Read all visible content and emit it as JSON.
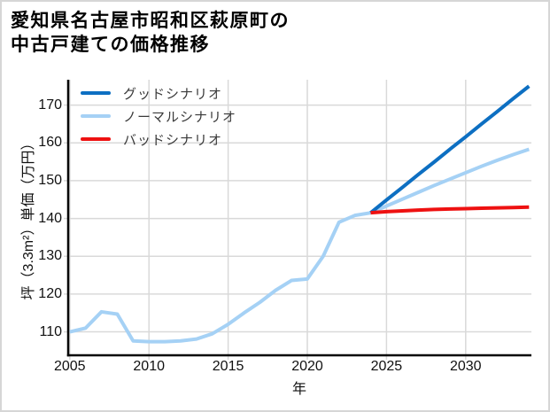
{
  "page": {
    "background": "#ffffff",
    "border_color": "#d6d6d6"
  },
  "header": {
    "title_line1": "愛知県名古屋市昭和区萩原町の",
    "title_line2": "中古戸建ての価格推移"
  },
  "chart_data": {
    "type": "line",
    "title": "愛知県名古屋市昭和区萩原町の中古戸建ての価格推移",
    "xlabel": "年",
    "ylabel": "坪（3.3m²）単価（万円）",
    "xlim": [
      2004.9,
      2034.15
    ],
    "ylim": [
      103.8,
      176.7
    ],
    "xticks": [
      2005,
      2010,
      2015,
      2020,
      2025,
      2030
    ],
    "yticks": [
      110,
      120,
      130,
      140,
      150,
      160,
      170
    ],
    "grid": true,
    "legend_position": "upper-left",
    "colors": {
      "grid": "#d9d9d9",
      "axis": "#000000",
      "tick_text": "#111111",
      "legend_text": "#3a3a3a"
    },
    "series": [
      {
        "name": "グッドシナリオ",
        "color": "#0d6fc2",
        "zorder": 2,
        "x": [
          2024,
          2025,
          2026,
          2027,
          2028,
          2029,
          2030,
          2031,
          2032,
          2033,
          2034
        ],
        "values": [
          141.5,
          144.9,
          148.2,
          151.6,
          154.9,
          158.3,
          161.6,
          165.0,
          168.3,
          171.7,
          175.0
        ]
      },
      {
        "name": "ノーマルシナリオ",
        "color": "#a5d1f5",
        "zorder": 1,
        "x": [
          2005,
          2006,
          2007,
          2008,
          2009,
          2010,
          2011,
          2012,
          2013,
          2014,
          2015,
          2016,
          2017,
          2018,
          2019,
          2020,
          2021,
          2022,
          2023,
          2024,
          2025,
          2026,
          2027,
          2028,
          2029,
          2030,
          2031,
          2032,
          2033,
          2034
        ],
        "values": [
          110.0,
          111.0,
          115.3,
          114.7,
          107.6,
          107.4,
          107.4,
          107.6,
          108.1,
          109.5,
          112.0,
          115.0,
          117.8,
          121.0,
          123.6,
          124.0,
          130.0,
          139.0,
          140.8,
          141.5,
          143.3,
          145.1,
          146.9,
          148.7,
          150.4,
          152.1,
          153.8,
          155.4,
          156.9,
          158.3
        ]
      },
      {
        "name": "バッドシナリオ",
        "color": "#ee1111",
        "zorder": 3,
        "x": [
          2024,
          2025,
          2026,
          2027,
          2028,
          2029,
          2030,
          2031,
          2032,
          2033,
          2034
        ],
        "values": [
          141.5,
          141.8,
          142.0,
          142.2,
          142.4,
          142.5,
          142.6,
          142.7,
          142.8,
          142.9,
          143.0
        ]
      }
    ]
  }
}
